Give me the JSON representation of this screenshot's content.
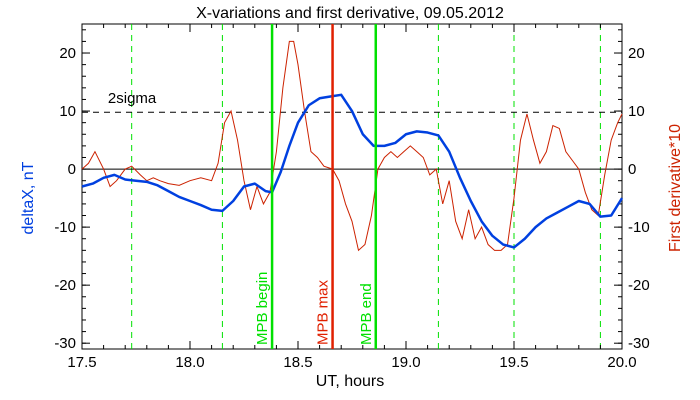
{
  "chart_data": {
    "type": "line",
    "title": "X-variations and first derivative, 09.05.2012",
    "xlabel": "UT, hours",
    "ylabel_left": "deltaX, nT",
    "ylabel_right": "First derivative*10",
    "xlim": [
      17.5,
      20.0
    ],
    "ylim": [
      -31,
      25
    ],
    "x_ticks": [
      "17.5",
      "18.0",
      "18.5",
      "19.0",
      "19.5",
      "20.0"
    ],
    "y_ticks": [
      "20",
      "10",
      "0",
      "-10",
      "-20",
      "-30"
    ],
    "zero_line": 0,
    "sigma_line": {
      "value": 9.8,
      "label": "2sigma"
    },
    "dashed_vlines": [
      17.73,
      18.15,
      19.15,
      19.5,
      19.9
    ],
    "markers": [
      {
        "x": 18.38,
        "label": "MPB begin",
        "color": "#00e000"
      },
      {
        "x": 18.66,
        "label": "MPB max",
        "color": "#e02000"
      },
      {
        "x": 18.86,
        "label": "MPB end",
        "color": "#00e000"
      }
    ],
    "colors": {
      "deltaX": "#0040e0",
      "derivative": "#cc2200",
      "axis": "#000000",
      "green": "#00e000",
      "red": "#e02000"
    },
    "series": [
      {
        "name": "deltaX, nT",
        "x": [
          17.5,
          17.55,
          17.6,
          17.65,
          17.7,
          17.75,
          17.8,
          17.85,
          17.9,
          17.95,
          18.0,
          18.05,
          18.1,
          18.15,
          18.2,
          18.25,
          18.3,
          18.35,
          18.38,
          18.42,
          18.46,
          18.5,
          18.55,
          18.6,
          18.65,
          18.7,
          18.75,
          18.8,
          18.85,
          18.9,
          18.95,
          19.0,
          19.05,
          19.1,
          19.15,
          19.2,
          19.25,
          19.3,
          19.35,
          19.4,
          19.45,
          19.5,
          19.55,
          19.6,
          19.65,
          19.7,
          19.75,
          19.8,
          19.85,
          19.9,
          19.95,
          20.0
        ],
        "values": [
          -3,
          -2.5,
          -1.5,
          -1,
          -1.8,
          -2,
          -2.2,
          -2.8,
          -3.8,
          -4.8,
          -5.5,
          -6.2,
          -7,
          -7.2,
          -5.5,
          -3,
          -2.5,
          -3.8,
          -4,
          -0.5,
          4,
          8,
          11,
          12.2,
          12.5,
          12.8,
          10,
          6,
          4,
          4,
          4.5,
          6,
          6.5,
          6.3,
          5.8,
          3,
          -1.5,
          -5.5,
          -9,
          -11.5,
          -13,
          -13.5,
          -12,
          -10,
          -8.5,
          -7.5,
          -6.5,
          -5.5,
          -6,
          -8.2,
          -8,
          -5
        ]
      },
      {
        "name": "First derivative*10",
        "x": [
          17.5,
          17.53,
          17.56,
          17.6,
          17.63,
          17.66,
          17.7,
          17.73,
          17.77,
          17.8,
          17.83,
          17.86,
          17.9,
          17.95,
          18.0,
          18.05,
          18.1,
          18.13,
          18.16,
          18.19,
          18.22,
          18.25,
          18.28,
          18.31,
          18.34,
          18.37,
          18.4,
          18.43,
          18.46,
          18.48,
          18.5,
          18.53,
          18.56,
          18.59,
          18.62,
          18.66,
          18.69,
          18.72,
          18.75,
          18.78,
          18.81,
          18.84,
          18.87,
          18.9,
          18.93,
          18.96,
          18.99,
          19.02,
          19.05,
          19.08,
          19.11,
          19.14,
          19.17,
          19.2,
          19.23,
          19.26,
          19.29,
          19.32,
          19.35,
          19.38,
          19.41,
          19.44,
          19.47,
          19.5,
          19.53,
          19.56,
          19.59,
          19.62,
          19.65,
          19.68,
          19.71,
          19.74,
          19.77,
          19.8,
          19.83,
          19.86,
          19.89,
          19.92,
          19.95,
          19.98,
          20.0
        ],
        "values": [
          0,
          1,
          3,
          0,
          -3,
          -2,
          0,
          0.5,
          -1,
          -2,
          -1.5,
          -2,
          -2.5,
          -2.8,
          -2,
          -1.5,
          -2,
          1,
          8,
          10,
          5,
          -2,
          -7,
          -3,
          -6,
          -4,
          3,
          14,
          22,
          22,
          18,
          10,
          3,
          2,
          0.5,
          0,
          -2,
          -6,
          -9,
          -14,
          -13,
          -8,
          0,
          2,
          3,
          2,
          3,
          4,
          3,
          2,
          -1,
          0,
          -6,
          -2,
          -9,
          -12,
          -7,
          -12,
          -10,
          -13,
          -14,
          -14,
          -13,
          -5,
          5,
          9.5,
          5,
          1,
          3,
          7.5,
          7,
          3,
          1.5,
          0,
          -4,
          -7,
          -8,
          -1,
          5,
          8,
          9.5
        ]
      }
    ]
  }
}
